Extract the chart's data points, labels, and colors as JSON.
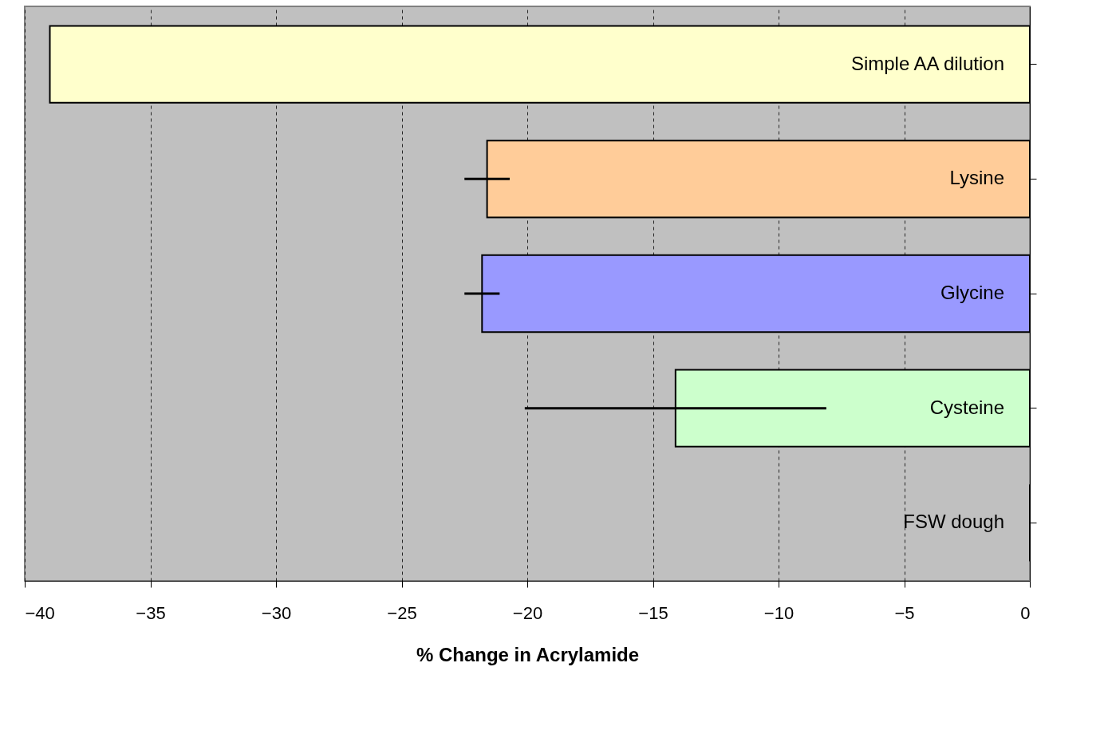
{
  "chart_data": {
    "type": "bar",
    "orientation": "horizontal",
    "xlabel": "% Change in Acrylamide",
    "categories": [
      "Simple AA dilution",
      "Lysine",
      "Glycine",
      "Cysteine",
      "FSW dough"
    ],
    "values": [
      -39.0,
      -21.6,
      -21.8,
      -14.1,
      0
    ],
    "errors": [
      null,
      0.9,
      0.7,
      6.0,
      null
    ],
    "colors": [
      "#ffffcc",
      "#ffcc99",
      "#9999ff",
      "#ccffcc",
      "#000000"
    ],
    "xlim": [
      -40,
      0
    ],
    "xticks": [
      -40,
      -35,
      -30,
      -25,
      -20,
      -15,
      -10,
      -5,
      0
    ],
    "grid": "x"
  }
}
